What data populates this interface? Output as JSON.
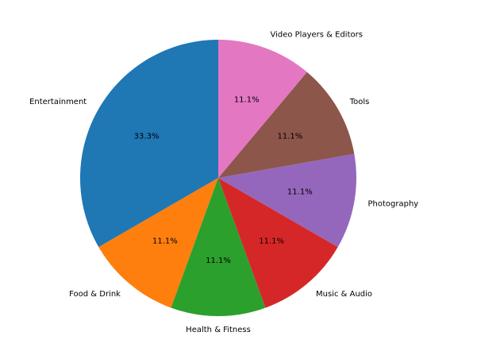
{
  "chart_data": {
    "type": "pie",
    "start_angle_deg": 90,
    "direction": "counterclockwise",
    "slices": [
      {
        "label": "Entertainment",
        "value": 3,
        "percent_label": "33.3%",
        "color": "#1f77b4"
      },
      {
        "label": "Food & Drink",
        "value": 1,
        "percent_label": "11.1%",
        "color": "#ff7f0e"
      },
      {
        "label": "Health & Fitness",
        "value": 1,
        "percent_label": "11.1%",
        "color": "#2ca02c"
      },
      {
        "label": "Music & Audio",
        "value": 1,
        "percent_label": "11.1%",
        "color": "#d62728"
      },
      {
        "label": "Photography",
        "value": 1,
        "percent_label": "11.1%",
        "color": "#9467bd"
      },
      {
        "label": "Tools",
        "value": 1,
        "percent_label": "11.1%",
        "color": "#8c564b"
      },
      {
        "label": "Video Players & Editors",
        "value": 1,
        "percent_label": "11.1%",
        "color": "#e377c2"
      }
    ]
  }
}
